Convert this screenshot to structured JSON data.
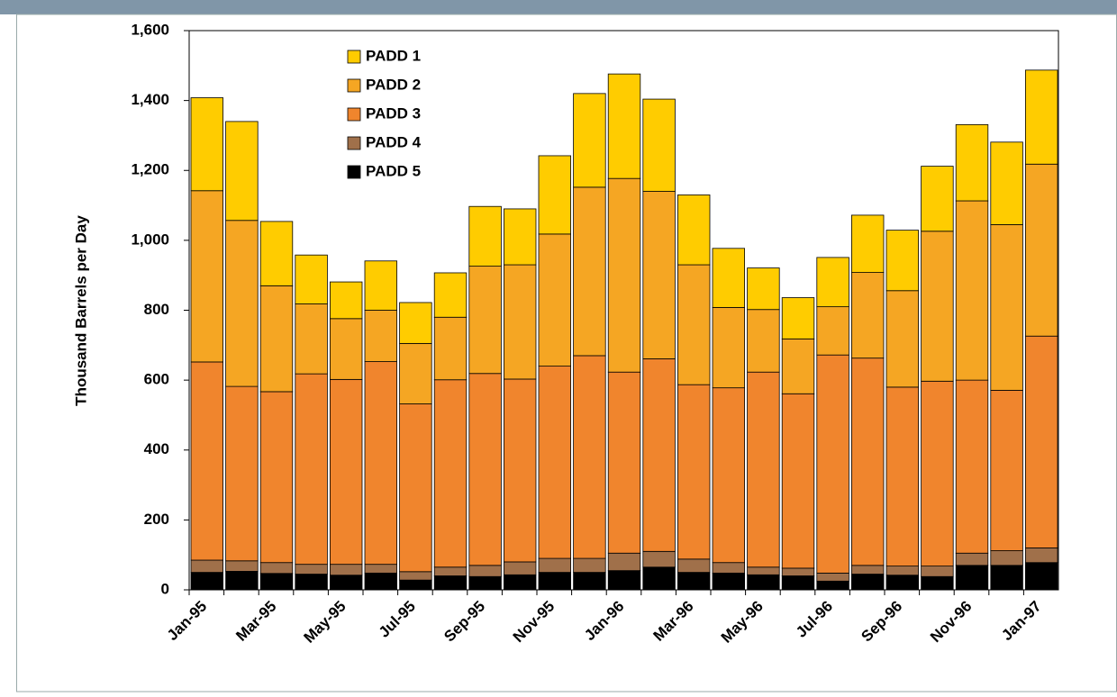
{
  "chart_data": {
    "type": "stacked-bar",
    "y_label": "Thousand Barrels per Day",
    "categories": [
      "Jan-95",
      null,
      "Mar-95",
      null,
      "May-95",
      null,
      "Jul-95",
      null,
      "Sep-95",
      null,
      "Nov-95",
      null,
      "Jan-96",
      null,
      "Mar-96",
      null,
      "May-96",
      null,
      "Jul-96",
      null,
      "Sep-96",
      null,
      "Nov-96",
      null,
      "Jan-97"
    ],
    "series": [
      {
        "name": "PADD 1",
        "color": "#ffcc00",
        "values": [
          266,
          283,
          184,
          140,
          105,
          141,
          117,
          127,
          171,
          160,
          224,
          268,
          299,
          264,
          200,
          169,
          119,
          118,
          141,
          164,
          173,
          186,
          218,
          236,
          269
        ]
      },
      {
        "name": "PADD 2",
        "color": "#f5a623",
        "values": [
          490,
          475,
          303,
          200,
          174,
          147,
          173,
          179,
          307,
          327,
          378,
          482,
          554,
          479,
          343,
          230,
          179,
          157,
          138,
          245,
          276,
          429,
          513,
          474,
          492
        ]
      },
      {
        "name": "PADD 3",
        "color": "#f0852d",
        "values": [
          567,
          499,
          489,
          545,
          529,
          580,
          480,
          536,
          549,
          523,
          550,
          580,
          518,
          551,
          499,
          500,
          558,
          499,
          624,
          593,
          512,
          529,
          495,
          459,
          606
        ]
      },
      {
        "name": "PADD 4",
        "color": "#a0704a",
        "values": [
          35,
          30,
          31,
          28,
          31,
          25,
          24,
          25,
          32,
          37,
          40,
          40,
          50,
          45,
          38,
          30,
          22,
          22,
          23,
          25,
          26,
          30,
          35,
          42,
          42
        ]
      },
      {
        "name": "PADD 5",
        "color": "#000000",
        "values": [
          50,
          53,
          47,
          45,
          42,
          48,
          28,
          40,
          38,
          43,
          50,
          50,
          55,
          65,
          50,
          48,
          43,
          40,
          25,
          45,
          42,
          38,
          70,
          70,
          78
        ]
      }
    ],
    "ylim": [
      0,
      1600
    ],
    "yticks": [
      0,
      200,
      400,
      600,
      800,
      {
        "value": 1000,
        "label": "1,000"
      },
      {
        "value": 1200,
        "label": "1,200"
      },
      {
        "value": 1400,
        "label": "1,400"
      },
      {
        "value": 1600,
        "label": "1,600"
      }
    ],
    "legend": "top-left"
  }
}
